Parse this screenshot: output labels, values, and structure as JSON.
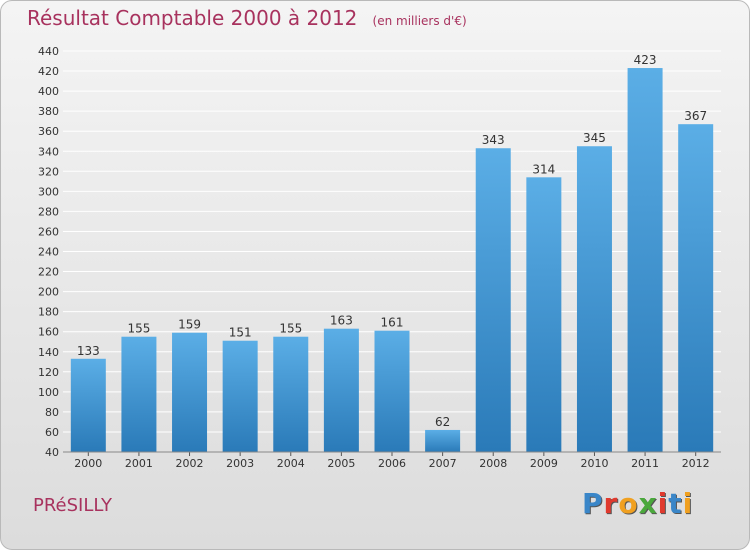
{
  "title": "Résultat Comptable 2000 à 2012",
  "subtitle": "(en milliers d'€)",
  "commune": "PRéSILLY",
  "logo": {
    "text": "Proxiti",
    "colors": [
      "#3a86c8",
      "#e03a2e",
      "#f0a020",
      "#4aa83c",
      "#e03a2e",
      "#3a86c8",
      "#f0a020"
    ]
  },
  "colors": {
    "bar_top": "#5baee6",
    "bar_bottom": "#2a7ab8",
    "grid": "#ffffff",
    "title": "#a8325e"
  },
  "chart_data": {
    "type": "bar",
    "title": "Résultat Comptable 2000 à 2012",
    "xlabel": "",
    "ylabel": "",
    "categories": [
      "2000",
      "2001",
      "2002",
      "2003",
      "2004",
      "2005",
      "2006",
      "2007",
      "2008",
      "2009",
      "2010",
      "2011",
      "2012"
    ],
    "values": [
      133,
      155,
      159,
      151,
      155,
      163,
      161,
      62,
      343,
      314,
      345,
      423,
      367
    ],
    "ylim": [
      40,
      440
    ],
    "yticks": [
      40,
      60,
      80,
      100,
      120,
      140,
      160,
      180,
      200,
      220,
      240,
      260,
      280,
      300,
      320,
      340,
      360,
      380,
      400,
      420,
      440
    ],
    "grid": true
  }
}
